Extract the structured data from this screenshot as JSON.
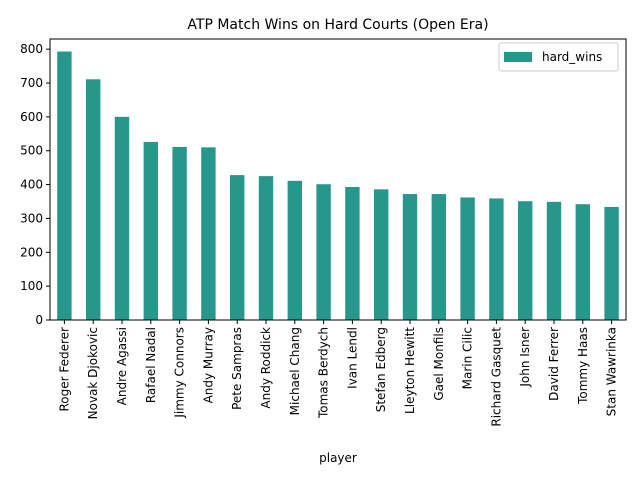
{
  "chart_data": {
    "type": "bar",
    "title": "ATP Match Wins on Hard Courts (Open Era)",
    "xlabel": "player",
    "ylabel": "",
    "ylim": [
      0,
      830
    ],
    "yticks": [
      0,
      100,
      200,
      300,
      400,
      500,
      600,
      700,
      800
    ],
    "grid": false,
    "legend_position": "top-right",
    "categories": [
      "Roger Federer",
      "Novak Djokovic",
      "Andre Agassi",
      "Rafael Nadal",
      "Jimmy Connors",
      "Andy Murray",
      "Pete Sampras",
      "Andy Roddick",
      "Michael Chang",
      "Tomas Berdych",
      "Ivan Lendl",
      "Stefan Edberg",
      "Lleyton Hewitt",
      "Gael Monfils",
      "Marin Cilic",
      "Richard Gasquet",
      "John Isner",
      "David Ferrer",
      "Tommy Haas",
      "Stan Wawrinka"
    ],
    "series": [
      {
        "name": "hard_wins",
        "color": "#26978a",
        "values": [
          793,
          711,
          600,
          526,
          511,
          510,
          428,
          425,
          411,
          401,
          393,
          386,
          372,
          372,
          362,
          359,
          351,
          349,
          342,
          334
        ]
      }
    ]
  }
}
